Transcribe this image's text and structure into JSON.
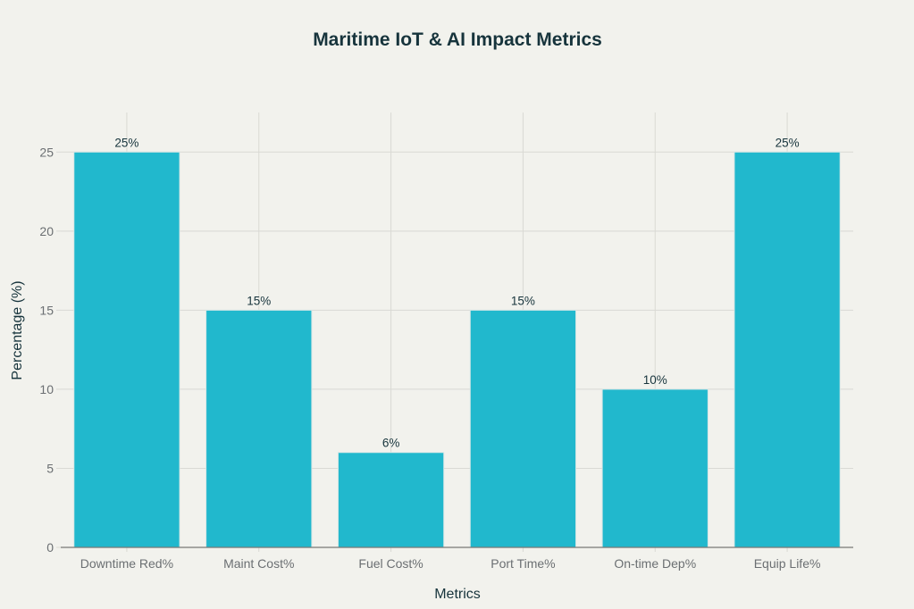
{
  "chart_data": {
    "type": "bar",
    "title": "Maritime IoT & AI Impact Metrics",
    "xlabel": "Metrics",
    "ylabel": "Percentage (%)",
    "categories": [
      "Downtime Red%",
      "Maint Cost%",
      "Fuel Cost%",
      "Port Time%",
      "On-time Dep%",
      "Equip Life%"
    ],
    "values": [
      25,
      15,
      6,
      15,
      10,
      25
    ],
    "data_labels": [
      "25%",
      "15%",
      "6%",
      "15%",
      "10%",
      "25%"
    ],
    "yticks": [
      0,
      5,
      10,
      15,
      20,
      25
    ],
    "ylim": [
      0,
      27.5
    ],
    "grid": true,
    "colors": {
      "bar": "#21b8cd",
      "background": "#f2f2ed",
      "grid": "#d9d9d4",
      "title": "#17343c"
    }
  }
}
